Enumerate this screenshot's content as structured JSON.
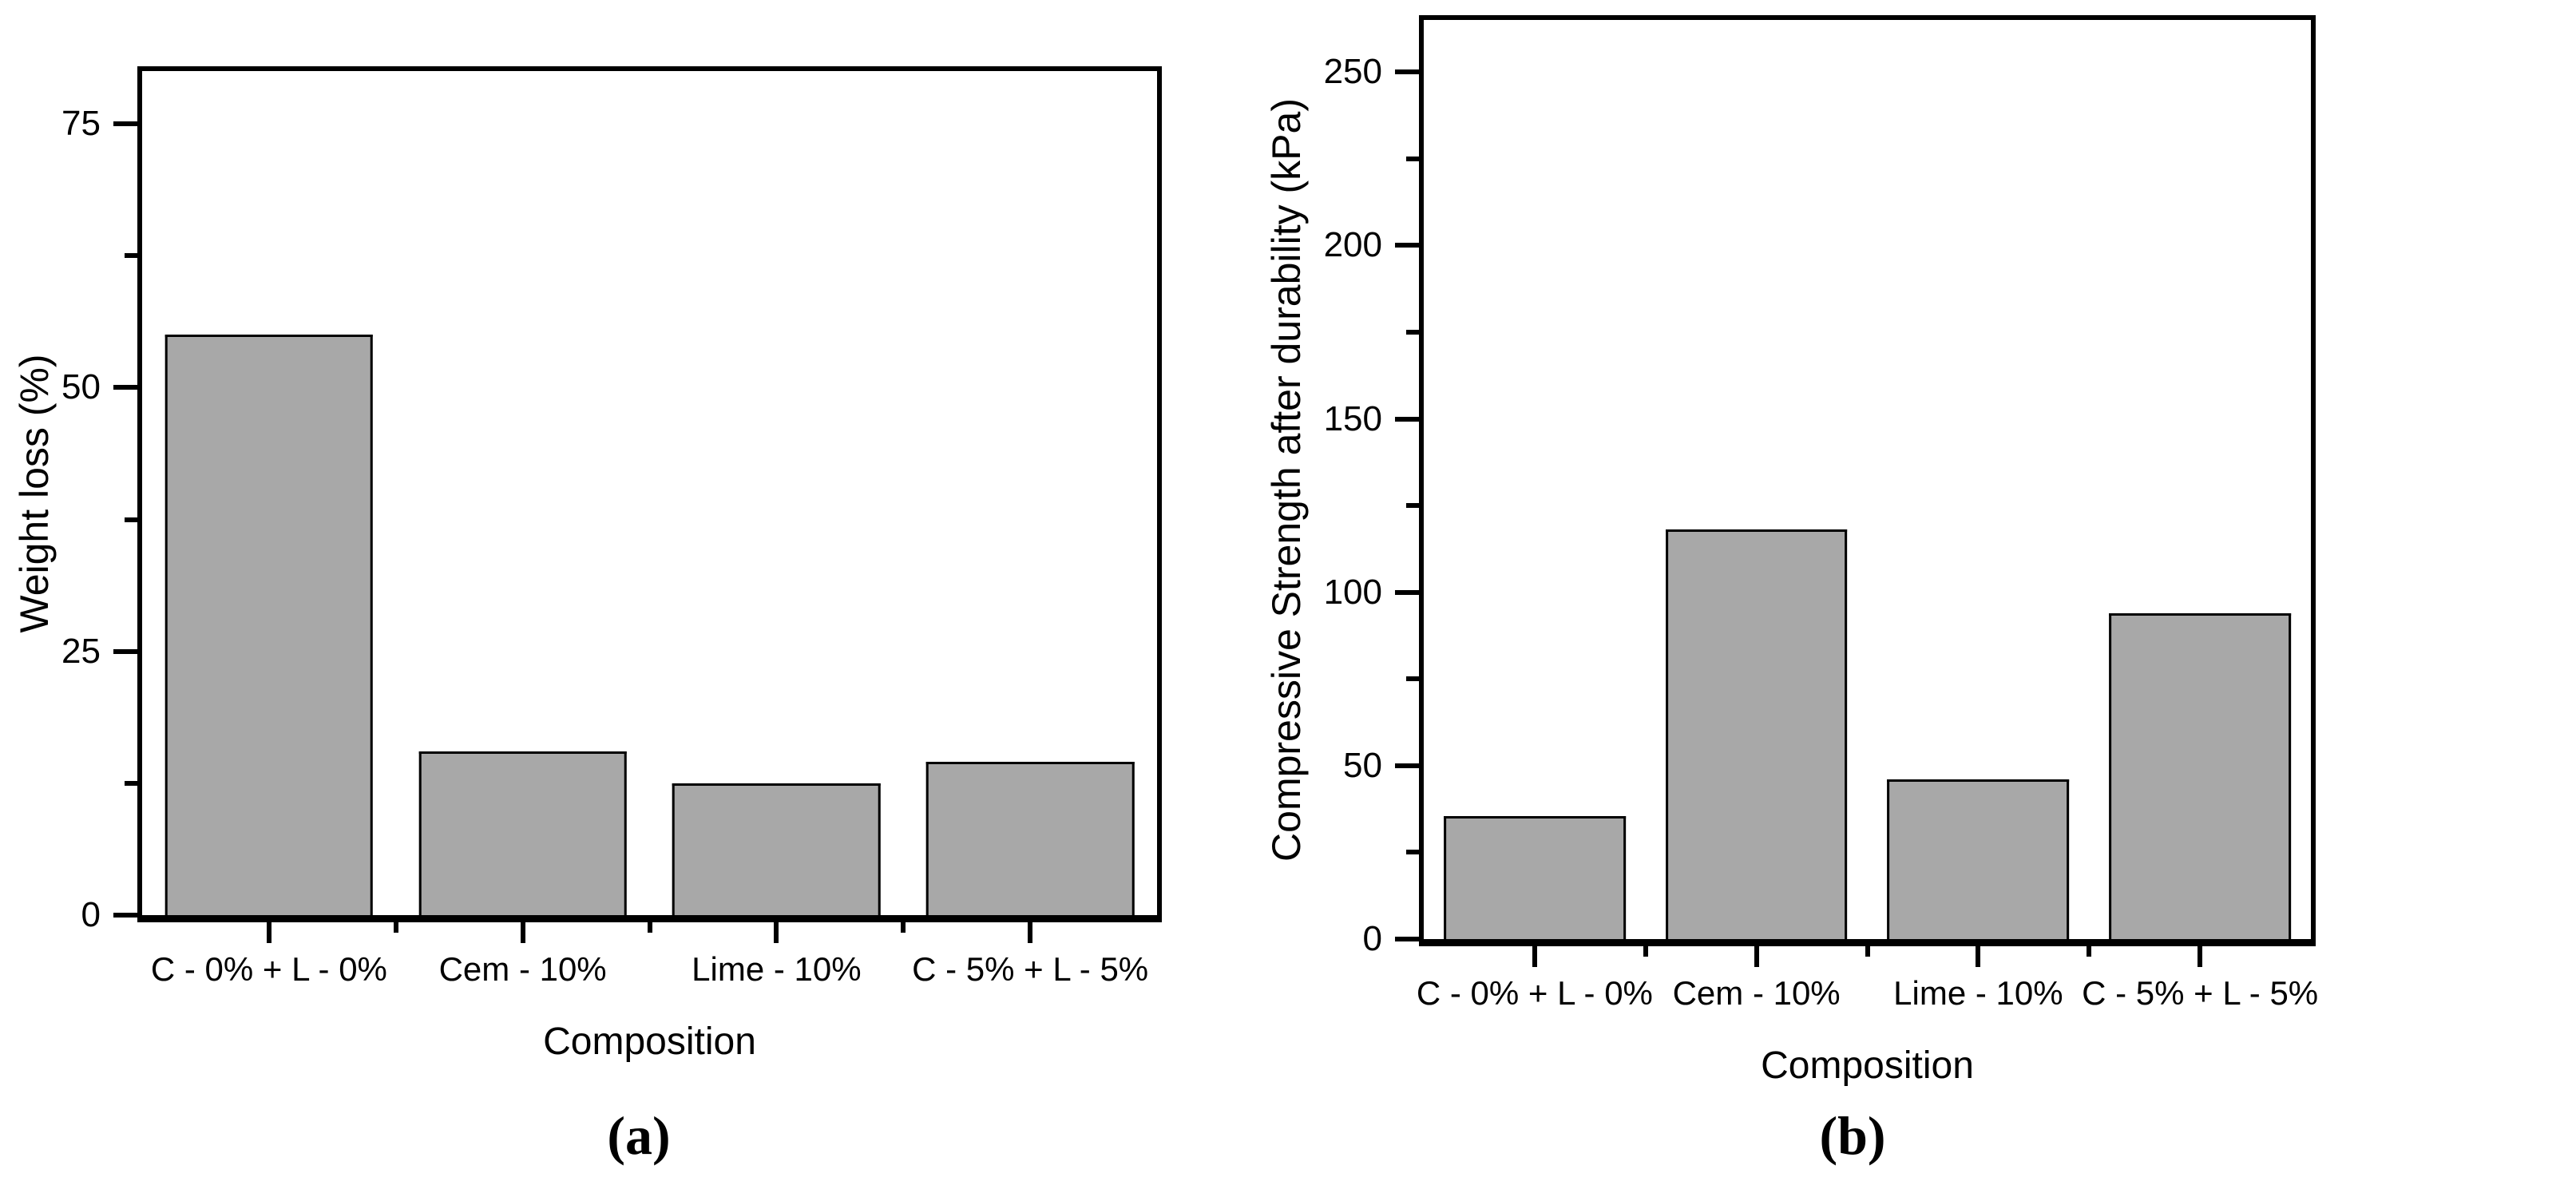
{
  "figure": {
    "background": "#ffffff",
    "bar_fill_color": "#a8a8a8",
    "bar_border_color": "#000000",
    "axis_color": "#000000"
  },
  "chart_data": [
    {
      "type": "bar",
      "panel": "a",
      "caption": "(a)",
      "title": "",
      "xlabel": "Composition",
      "ylabel": "Weight loss (%)",
      "categories": [
        "C - 0% + L - 0%",
        "Cem - 10%",
        "Lime - 10%",
        "C - 5% + L - 5%"
      ],
      "values": [
        55,
        15.5,
        12.5,
        14.5
      ],
      "ylim": [
        0,
        80
      ],
      "yticks_major": 25,
      "yticks_minor": 12.5,
      "ytick_labels": [
        "0",
        "25",
        "50",
        "75"
      ],
      "grid": "off",
      "legend": "none",
      "bar_color": "#a8a8a8"
    },
    {
      "type": "bar",
      "panel": "b",
      "caption": "(b)",
      "title": "",
      "xlabel": "Composition",
      "ylabel": "Compressive Strength after durability (kPa)",
      "categories": [
        "C - 0% + L - 0%",
        "Cem - 10%",
        "Lime - 10%",
        "C - 5% + L - 5%"
      ],
      "values": [
        35.5,
        118,
        46,
        94
      ],
      "ylim": [
        0,
        265
      ],
      "yticks_major": 50,
      "yticks_minor": 25,
      "ytick_labels": [
        "0",
        "50",
        "100",
        "150",
        "200",
        "250"
      ],
      "grid": "off",
      "legend": "none",
      "bar_color": "#a8a8a8"
    }
  ]
}
